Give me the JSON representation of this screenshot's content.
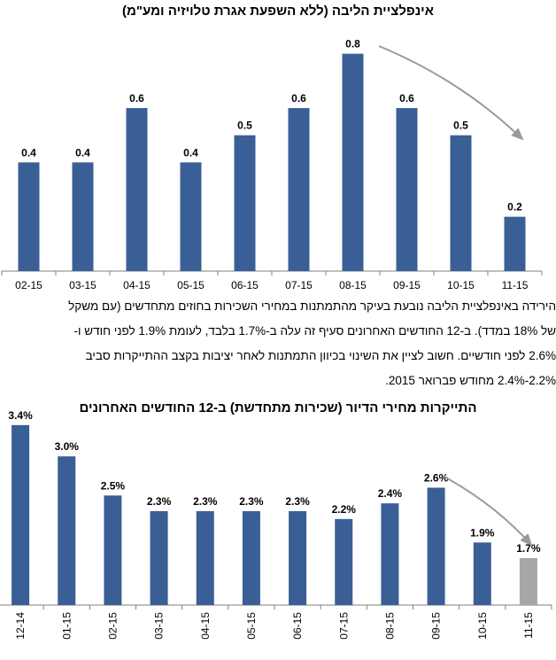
{
  "chart_data": [
    {
      "type": "bar",
      "title": "אינפלציית הליבה (ללא השפעת אגרת טלויזיה ומע\"מ)",
      "categories": [
        "02-15",
        "03-15",
        "04-15",
        "05-15",
        "06-15",
        "07-15",
        "08-15",
        "09-15",
        "10-15",
        "11-15"
      ],
      "values": [
        0.4,
        0.4,
        0.6,
        0.4,
        0.5,
        0.6,
        0.8,
        0.6,
        0.5,
        0.2
      ],
      "value_labels": [
        "0.4",
        "0.4",
        "0.6",
        "0.4",
        "0.5",
        "0.6",
        "0.8",
        "0.6",
        "0.5",
        "0.2"
      ],
      "bar_color": "#3a5f96",
      "ylim": [
        0,
        0.9
      ],
      "annotation": "trend-arrow-down"
    },
    {
      "type": "bar",
      "title": "התייקרות מחירי הדיור (שכירות מתחדשת) ב-12 החודשים האחרונים",
      "categories": [
        "12-14",
        "01-15",
        "02-15",
        "03-15",
        "04-15",
        "05-15",
        "06-15",
        "07-15",
        "08-15",
        "09-15",
        "10-15",
        "11-15"
      ],
      "values": [
        3.4,
        3.0,
        2.5,
        2.3,
        2.3,
        2.3,
        2.3,
        2.2,
        2.4,
        2.6,
        1.9,
        1.7
      ],
      "value_labels": [
        "3.4%",
        "3.0%",
        "2.5%",
        "2.3%",
        "2.3%",
        "2.3%",
        "2.3%",
        "2.2%",
        "2.4%",
        "2.6%",
        "1.9%",
        "1.7%"
      ],
      "bar_color": "#3a5f96",
      "highlight_color": "#a6a6a6",
      "highlight_index": 11,
      "ylim": [
        1.1,
        3.5
      ],
      "annotation": "trend-arrow-down"
    }
  ],
  "paragraph": {
    "lines": [
      "הירידה באינפלציית הליבה נובעת בעיקר מהתמתנות במחירי השכירות בחוזים מתחדשים (עם משקל",
      "של 18% במדד). ב-12 החודשים האחרונים סעיף זה עלה ב-1.7% בלבד, לעומת 1.9% לפני חודש ו-",
      "2.6% לפני חודשיים. חשוב לציין את השינוי בכיוון התמתנות לאחר יציבות בקצב ההתייקרות סביב",
      "2.2%-2.4% מחודש פברואר 2015."
    ]
  }
}
